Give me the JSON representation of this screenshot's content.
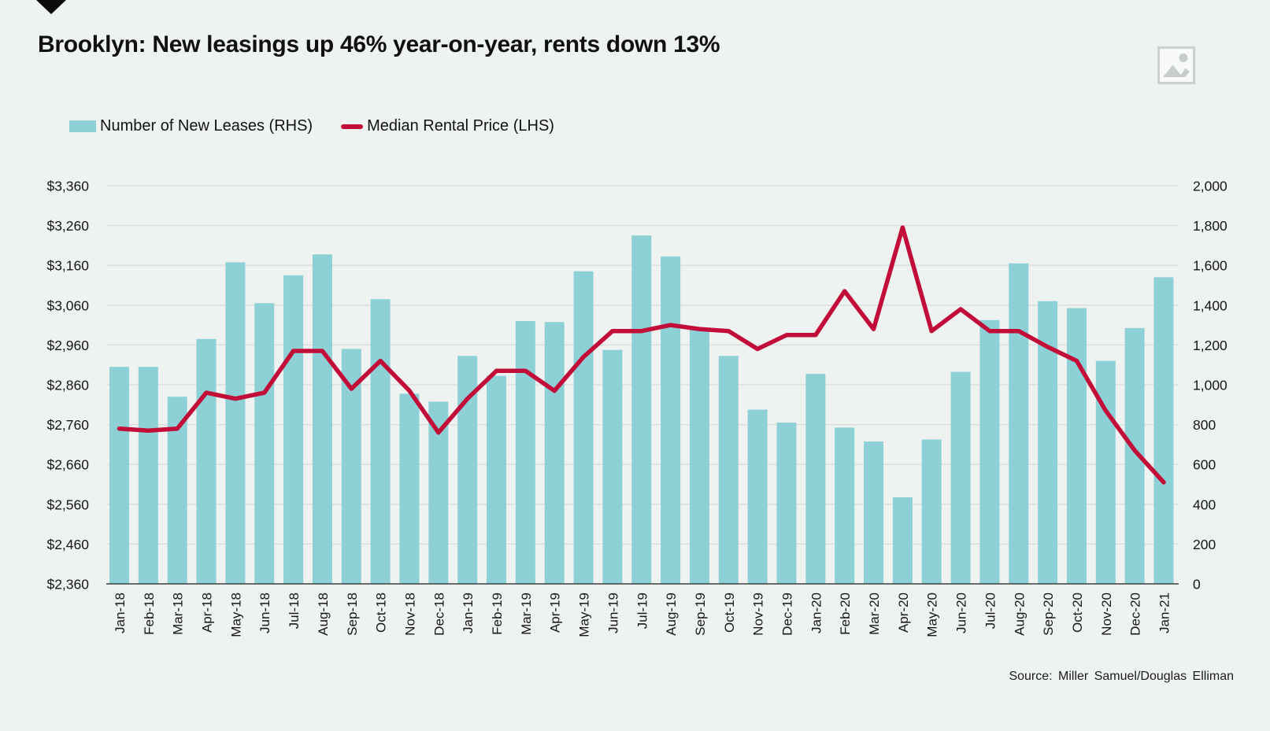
{
  "header": {
    "title": "Brooklyn: New leasings up 46% year-on-year, rents down 13%",
    "logo": "black-down-triangle",
    "corner_icon": "image-placeholder"
  },
  "legend": {
    "items": [
      {
        "label": "Number of New Leases (RHS)",
        "swatch": "bar",
        "color": "#8dd0d6"
      },
      {
        "label": "Median Rental Price (LHS)",
        "swatch": "line",
        "color": "#c10d38"
      }
    ]
  },
  "chart_data": {
    "type": "bar+line",
    "title": "Brooklyn: New leasings up 46% year-on-year, rents down 13%",
    "grid": true,
    "legend_position": "top-left",
    "categories": [
      "Jan-18",
      "Feb-18",
      "Mar-18",
      "Apr-18",
      "May-18",
      "Jun-18",
      "Jul-18",
      "Aug-18",
      "Sep-18",
      "Oct-18",
      "Nov-18",
      "Dec-18",
      "Jan-19",
      "Feb-19",
      "Mar-19",
      "Apr-19",
      "May-19",
      "Jun-19",
      "Jul-19",
      "Aug-19",
      "Sep-19",
      "Oct-19",
      "Nov-19",
      "Dec-19",
      "Jan-20",
      "Feb-20",
      "Mar-20",
      "Apr-20",
      "May-20",
      "Jun-20",
      "Jul-20",
      "Aug-20",
      "Sep-20",
      "Oct-20",
      "Nov-20",
      "Dec-20",
      "Jan-21"
    ],
    "series": [
      {
        "name": "Number of New Leases (RHS)",
        "type": "bar",
        "axis": "right",
        "color": "#8dd0d6",
        "values": [
          1090,
          1090,
          940,
          1230,
          1615,
          1410,
          1550,
          1655,
          1180,
          1430,
          955,
          915,
          1145,
          1045,
          1320,
          1315,
          1570,
          1175,
          1750,
          1645,
          1285,
          1145,
          875,
          810,
          1055,
          785,
          715,
          435,
          725,
          1065,
          1325,
          1610,
          1420,
          1385,
          1120,
          1285,
          1540
        ]
      },
      {
        "name": "Median Rental Price (LHS)",
        "type": "line",
        "axis": "left",
        "color": "#c10d38",
        "values": [
          2750,
          2745,
          2750,
          2840,
          2825,
          2840,
          2945,
          2945,
          2850,
          2920,
          2845,
          2740,
          2825,
          2895,
          2895,
          2845,
          2930,
          2995,
          2995,
          3010,
          3000,
          2995,
          2950,
          2985,
          2985,
          3095,
          3000,
          3255,
          2995,
          3050,
          2995,
          2995,
          2955,
          2920,
          2795,
          2695,
          2615
        ]
      }
    ],
    "left_axis": {
      "min": 2360,
      "max": 3360,
      "ticks": [
        "$3,360",
        "$3,260",
        "$3,160",
        "$3,060",
        "$2,960",
        "$2,860",
        "$2,760",
        "$2,660",
        "$2,560",
        "$2,460",
        "$2,360"
      ]
    },
    "right_axis": {
      "min": 0,
      "max": 2000,
      "ticks": [
        "2,000",
        "1,800",
        "1,600",
        "1,400",
        "1,200",
        "1,000",
        "800",
        "600",
        "400",
        "200",
        "0"
      ]
    },
    "colors": {
      "background": "#eef2f1",
      "gridline": "#d8dddb",
      "axis_line": "#3d3d3d",
      "tick_text": "#161616"
    }
  },
  "source": {
    "text": "Source: Miller Samuel/Douglas Elliman"
  }
}
